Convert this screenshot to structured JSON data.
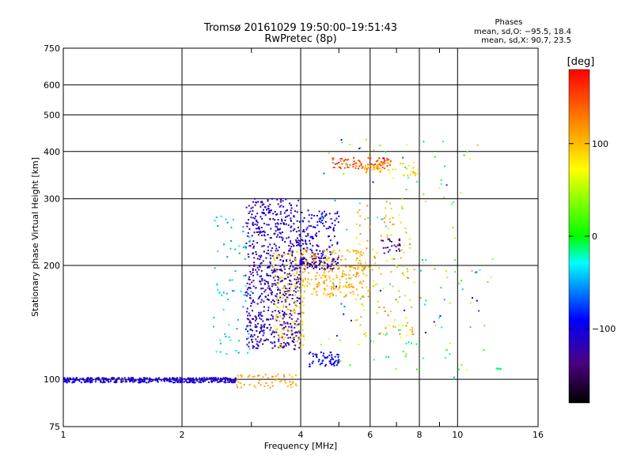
{
  "chart_data": {
    "type": "scatter",
    "title": "Tromsø 20161029 19:50:00–19:51:43",
    "subtitle": "RwPretec (8p)",
    "xlabel": "Frequency [MHz]",
    "ylabel": "Stationary phase Virtual Height [km]",
    "x_scale": "log",
    "y_scale": "log",
    "xlim": [
      1,
      16
    ],
    "ylim": [
      75,
      750
    ],
    "x_ticks": [
      1,
      2,
      4,
      6,
      8,
      10,
      16
    ],
    "x_tick_labels": [
      "1",
      "2",
      "4",
      "6",
      "8",
      "10",
      "16"
    ],
    "x_minor_ticks": [
      3,
      5,
      7,
      9
    ],
    "y_ticks": [
      75,
      100,
      200,
      300,
      400,
      500,
      600,
      750
    ],
    "y_tick_labels": [
      "75",
      "100",
      "200",
      "300",
      "400",
      "500",
      "600",
      "750"
    ],
    "grid": true,
    "colorbar": {
      "label": "[deg]",
      "range": [
        -180,
        180
      ],
      "ticks": [
        100,
        0,
        -100
      ],
      "tick_labels": [
        "100",
        "0",
        "−100"
      ]
    },
    "stats": {
      "heading": "Phases",
      "line_o": "mean, sd,O: −95.5, 18.4",
      "line_x": "mean, sd,X:  90.7, 23.5"
    },
    "point_groups": [
      {
        "x": [
          1.0,
          2.75
        ],
        "y": [
          98,
          101
        ],
        "phase_mean": -105,
        "phase_spread": 20,
        "count": 380
      },
      {
        "x": [
          2.75,
          3.9
        ],
        "y": [
          95,
          103
        ],
        "phase_mean": 110,
        "phase_spread": 15,
        "count": 55
      },
      {
        "x": [
          2.9,
          4.0
        ],
        "y": [
          120,
          300
        ],
        "phase_mean": -115,
        "phase_spread": 25,
        "count": 700
      },
      {
        "x": [
          2.4,
          3.0
        ],
        "y": [
          115,
          270
        ],
        "phase_mean": -40,
        "phase_spread": 25,
        "count": 70
      },
      {
        "x": [
          3.4,
          4.1
        ],
        "y": [
          120,
          220
        ],
        "phase_mean": 95,
        "phase_spread": 25,
        "count": 160
      },
      {
        "x": [
          3.9,
          5.0
        ],
        "y": [
          195,
          210
        ],
        "phase_mean": -125,
        "phase_spread": 15,
        "count": 80
      },
      {
        "x": [
          4.0,
          5.0
        ],
        "y": [
          200,
          280
        ],
        "phase_mean": -105,
        "phase_spread": 25,
        "count": 140
      },
      {
        "x": [
          4.1,
          5.8
        ],
        "y": [
          165,
          220
        ],
        "phase_mean": 105,
        "phase_spread": 25,
        "count": 200
      },
      {
        "x": [
          4.2,
          5.0
        ],
        "y": [
          108,
          118
        ],
        "phase_mean": -95,
        "phase_spread": 20,
        "count": 60
      },
      {
        "x": [
          4.8,
          6.8
        ],
        "y": [
          360,
          385
        ],
        "phase_mean": 150,
        "phase_spread": 20,
        "count": 90
      },
      {
        "x": [
          5.8,
          8.0
        ],
        "y": [
          345,
          375
        ],
        "phase_mean": 95,
        "phase_spread": 30,
        "count": 50
      },
      {
        "x": [
          5.5,
          7.8
        ],
        "y": [
          130,
          300
        ],
        "phase_mean": 100,
        "phase_spread": 40,
        "count": 130
      },
      {
        "x": [
          6.4,
          7.2
        ],
        "y": [
          215,
          235
        ],
        "phase_mean": -130,
        "phase_spread": 15,
        "count": 25
      },
      {
        "x": [
          4.5,
          12.5
        ],
        "y": [
          100,
          430
        ],
        "phase_mean": 0,
        "phase_spread": 150,
        "count": 150
      },
      {
        "x": [
          12.5,
          12.9
        ],
        "y": [
          106,
          107
        ],
        "phase_mean": -10,
        "phase_spread": 5,
        "count": 6
      }
    ]
  }
}
